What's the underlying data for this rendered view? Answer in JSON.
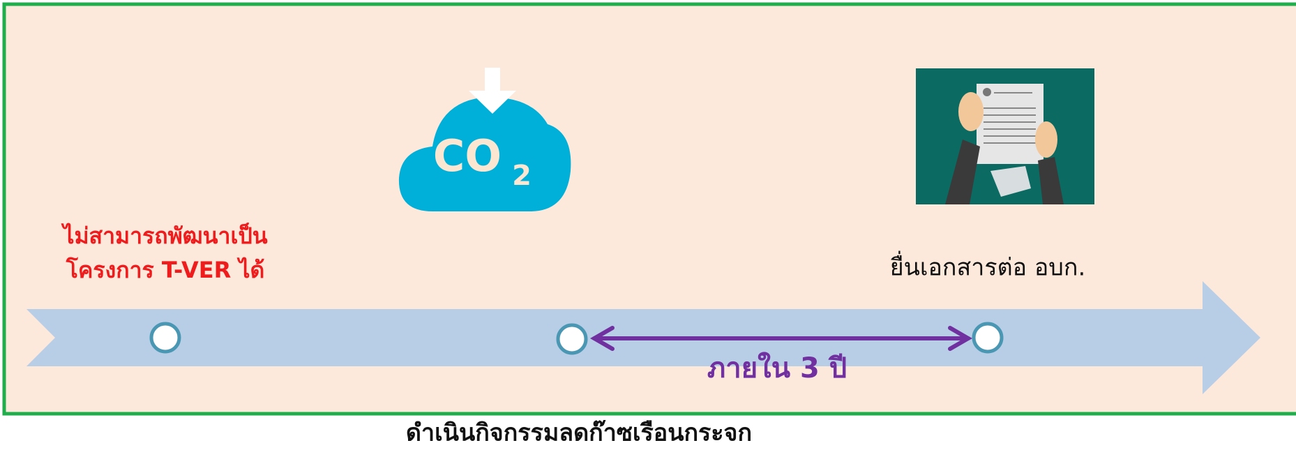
{
  "timeline": {
    "left_note": {
      "line1": "ไม่สามารถพัฒนาเป็น",
      "line2": "โครงการ  T-VER ได้"
    },
    "icon_text": {
      "main": "CO",
      "sub": "2"
    },
    "right_note": "ยื่นเอกสารต่อ อบก.",
    "duration": "ภายใน  3 ปี",
    "caption": "ดำเนินกิจกรรมลดก๊าซเรือนกระจก"
  }
}
